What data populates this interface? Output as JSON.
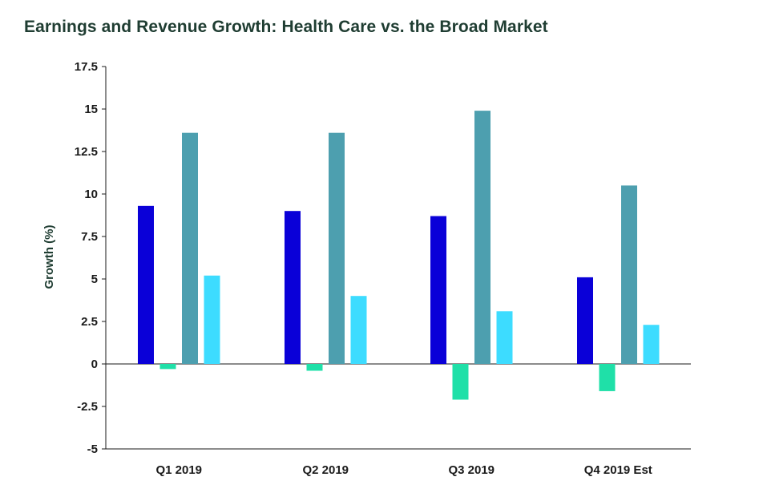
{
  "chart_data": {
    "type": "bar",
    "title": "Earnings and Revenue Growth: Health Care vs. the Broad Market",
    "xlabel": "",
    "ylabel": "Growth (%)",
    "ylim": [
      -5,
      17.5
    ],
    "yticks": [
      17.5,
      15,
      12.5,
      10,
      7.5,
      5,
      2.5,
      0,
      -2.5,
      -5
    ],
    "ytick_labels": [
      "17.5",
      "15",
      "12.5",
      "10",
      "7.5",
      "5",
      "2.5",
      "0",
      "-2.5",
      "-5"
    ],
    "grid": false,
    "legend": "none",
    "categories": [
      "Q1 2019",
      "Q2 2019",
      "Q3 2019",
      "Q4 2019 Est"
    ],
    "series": [
      {
        "color": "#0a00d8",
        "values": [
          9.3,
          9.0,
          8.7,
          5.1
        ]
      },
      {
        "color": "#1fe0a8",
        "values": [
          -0.3,
          -0.4,
          -2.1,
          -1.6
        ]
      },
      {
        "color": "#4d9faf",
        "values": [
          13.6,
          13.6,
          14.9,
          10.5
        ]
      },
      {
        "color": "#3ddcff",
        "values": [
          5.2,
          4.0,
          3.1,
          2.3
        ]
      }
    ]
  }
}
